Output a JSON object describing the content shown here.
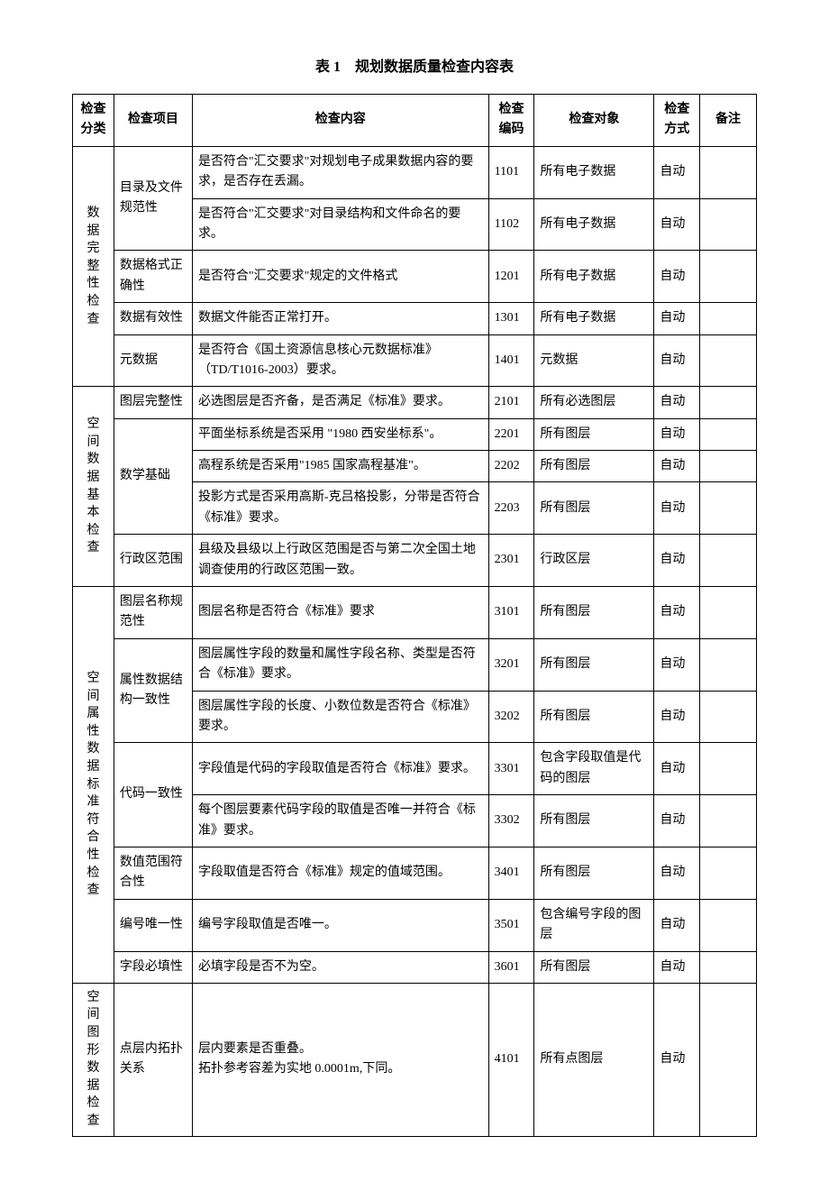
{
  "title": "表 1　规划数据质量检查内容表",
  "headers": {
    "category": "检查分类",
    "item": "检查项目",
    "content": "检查内容",
    "code": "检查编码",
    "target": "检查对象",
    "method": "检查方式",
    "note": "备注"
  },
  "watermark": "",
  "rows": [
    {
      "category": "数据完整性检查",
      "catSpan": 5,
      "item": "目录及文件规范性",
      "itemSpan": 2,
      "content": "是否符合\"汇交要求\"对规划电子成果数据内容的要求，是否存在丢漏。",
      "code": "1101",
      "target": "所有电子数据",
      "method": "自动",
      "note": ""
    },
    {
      "content": "是否符合\"汇交要求\"对目录结构和文件命名的要求。",
      "code": "1102",
      "target": "所有电子数据",
      "method": "自动",
      "note": ""
    },
    {
      "item": "数据格式正确性",
      "itemSpan": 1,
      "content": "是否符合\"汇交要求\"规定的文件格式",
      "code": "1201",
      "target": "所有电子数据",
      "method": "自动",
      "note": ""
    },
    {
      "item": "数据有效性",
      "itemSpan": 1,
      "content": "数据文件能否正常打开。",
      "code": "1301",
      "target": "所有电子数据",
      "method": "自动",
      "note": ""
    },
    {
      "item": "元数据",
      "itemSpan": 1,
      "content": "是否符合《国土资源信息核心元数据标准》（TD/T1016-2003）要求。",
      "code": "1401",
      "target": "元数据",
      "method": "自动",
      "note": ""
    },
    {
      "category": "空间数据基本检查",
      "catSpan": 5,
      "item": "图层完整性",
      "itemSpan": 1,
      "content": "必选图层是否齐备，是否满足《标准》要求。",
      "code": "2101",
      "target": "所有必选图层",
      "method": "自动",
      "note": ""
    },
    {
      "item": "数学基础",
      "itemSpan": 3,
      "content": "平面坐标系统是否采用 \"1980 西安坐标系\"。",
      "code": "2201",
      "target": "所有图层",
      "method": "自动",
      "note": ""
    },
    {
      "content": "高程系统是否采用\"1985 国家高程基准\"。",
      "code": "2202",
      "target": "所有图层",
      "method": "自动",
      "note": ""
    },
    {
      "content": "投影方式是否采用高斯-克吕格投影，分带是否符合《标准》要求。",
      "code": "2203",
      "target": "所有图层",
      "method": "自动",
      "note": ""
    },
    {
      "item": "行政区范围",
      "itemSpan": 1,
      "content": "县级及县级以上行政区范围是否与第二次全国土地调查使用的行政区范围一致。",
      "code": "2301",
      "target": "行政区层",
      "method": "自动",
      "note": ""
    },
    {
      "category": "空间属性数据标准符合性检查",
      "catSpan": 8,
      "item": "图层名称规范性",
      "itemSpan": 1,
      "content": "图层名称是否符合《标准》要求",
      "code": "3101",
      "target": "所有图层",
      "method": "自动",
      "note": ""
    },
    {
      "item": "属性数据结构一致性",
      "itemSpan": 2,
      "content": "图层属性字段的数量和属性字段名称、类型是否符合《标准》要求。",
      "code": "3201",
      "target": "所有图层",
      "method": "自动",
      "note": ""
    },
    {
      "content": "图层属性字段的长度、小数位数是否符合《标准》要求。",
      "code": "3202",
      "target": "所有图层",
      "method": "自动",
      "note": ""
    },
    {
      "item": "代码一致性",
      "itemSpan": 2,
      "content": "字段值是代码的字段取值是否符合《标准》要求。",
      "code": "3301",
      "target": "包含字段取值是代码的图层",
      "method": "自动",
      "note": ""
    },
    {
      "content": "每个图层要素代码字段的取值是否唯一并符合《标准》要求。",
      "code": "3302",
      "target": "所有图层",
      "method": "自动",
      "note": ""
    },
    {
      "item": "数值范围符合性",
      "itemSpan": 1,
      "content": "字段取值是否符合《标准》规定的值域范围。",
      "code": "3401",
      "target": "所有图层",
      "method": "自动",
      "note": ""
    },
    {
      "item": "编号唯一性",
      "itemSpan": 1,
      "content": "编号字段取值是否唯一。",
      "code": "3501",
      "target": "包含编号字段的图层",
      "method": "自动",
      "note": ""
    },
    {
      "item": "字段必填性",
      "itemSpan": 1,
      "content": "必填字段是否不为空。",
      "code": "3601",
      "target": "所有图层",
      "method": "自动",
      "note": ""
    },
    {
      "category": "空间图形数据检查",
      "catSpan": 1,
      "item": "点层内拓扑关系",
      "itemSpan": 1,
      "content": "层内要素是否重叠。\n拓扑参考容差为实地 0.0001m,下同。",
      "code": "4101",
      "target": "所有点图层",
      "method": "自动",
      "note": ""
    }
  ]
}
